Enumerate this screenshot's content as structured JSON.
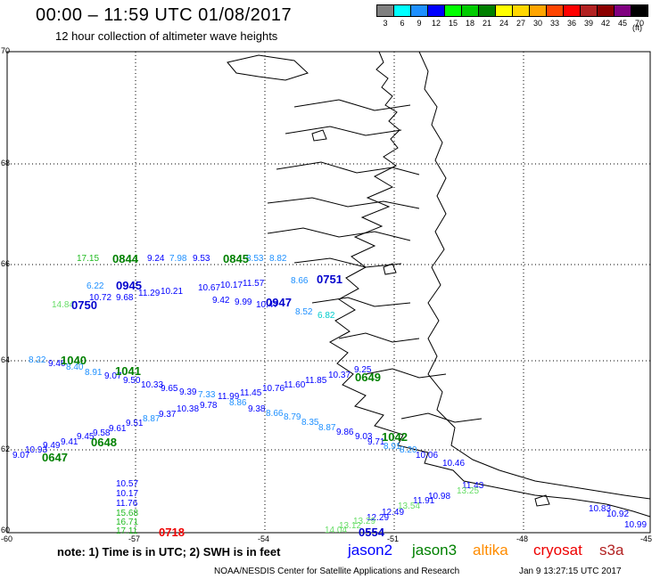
{
  "header": {
    "title": "00:00 – 11:59 UTC 01/08/2017",
    "subtitle": "12 hour collection of altimeter wave heights"
  },
  "color_scale": {
    "unit": "(ft)",
    "bins": [
      {
        "label": "3",
        "color": "#808080"
      },
      {
        "label": "6",
        "color": "#00ffff"
      },
      {
        "label": "9",
        "color": "#1e90ff"
      },
      {
        "label": "12",
        "color": "#0000ff"
      },
      {
        "label": "15",
        "color": "#00ff00"
      },
      {
        "label": "18",
        "color": "#00cc00"
      },
      {
        "label": "21",
        "color": "#008000"
      },
      {
        "label": "24",
        "color": "#ffff00"
      },
      {
        "label": "27",
        "color": "#ffd700"
      },
      {
        "label": "30",
        "color": "#ffa500"
      },
      {
        "label": "33",
        "color": "#ff4500"
      },
      {
        "label": "36",
        "color": "#ff0000"
      },
      {
        "label": "39",
        "color": "#b22222"
      },
      {
        "label": "42",
        "color": "#8b0000"
      },
      {
        "label": "45",
        "color": "#800080"
      },
      {
        "label": "70",
        "color": "#000000"
      }
    ]
  },
  "axes": {
    "lat_ticks": [
      "70",
      "68",
      "66",
      "64",
      "62",
      "60"
    ],
    "lon_ticks": [
      "-60",
      "-57",
      "-54",
      "-51",
      "-48",
      "-45"
    ]
  },
  "map": {
    "wave_heights": [
      {
        "value": "17.15",
        "color": "#22bb22"
      },
      {
        "value": "9.24",
        "color": "#0000ff"
      },
      {
        "value": "7.98",
        "color": "#1e90ff"
      },
      {
        "value": "9.53",
        "color": "#0000ff"
      },
      {
        "value": "8.53",
        "color": "#1e90ff"
      },
      {
        "value": "8.82",
        "color": "#1e90ff"
      },
      {
        "value": "6.22",
        "color": "#1e90ff"
      },
      {
        "value": "10.72",
        "color": "#0000ff"
      },
      {
        "value": "9.68",
        "color": "#0000ff"
      },
      {
        "value": "11.29",
        "color": "#0000ff"
      },
      {
        "value": "10.21",
        "color": "#0000ff"
      },
      {
        "value": "10.67",
        "color": "#0000ff"
      },
      {
        "value": "10.17",
        "color": "#0000ff"
      },
      {
        "value": "11.57",
        "color": "#0000ff"
      },
      {
        "value": "8.66",
        "color": "#1e90ff"
      },
      {
        "value": "14.84",
        "color": "#66dd66"
      },
      {
        "value": "9.42",
        "color": "#0000ff"
      },
      {
        "value": "9.99",
        "color": "#0000ff"
      },
      {
        "value": "10.47",
        "color": "#0000ff"
      },
      {
        "value": "8.52",
        "color": "#1e90ff"
      },
      {
        "value": "6.82",
        "color": "#00cccc"
      },
      {
        "value": "8.22",
        "color": "#1e90ff"
      },
      {
        "value": "9.46",
        "color": "#0000ff"
      },
      {
        "value": "8.40",
        "color": "#1e90ff"
      },
      {
        "value": "8.91",
        "color": "#1e90ff"
      },
      {
        "value": "9.07",
        "color": "#0000ff"
      },
      {
        "value": "9.50",
        "color": "#0000ff"
      },
      {
        "value": "10.33",
        "color": "#0000ff"
      },
      {
        "value": "9.65",
        "color": "#0000ff"
      },
      {
        "value": "9.39",
        "color": "#0000ff"
      },
      {
        "value": "7.33",
        "color": "#1e90ff"
      },
      {
        "value": "11.99",
        "color": "#0000ff"
      },
      {
        "value": "11.45",
        "color": "#0000ff"
      },
      {
        "value": "10.76",
        "color": "#0000ff"
      },
      {
        "value": "11.60",
        "color": "#0000ff"
      },
      {
        "value": "11.85",
        "color": "#0000ff"
      },
      {
        "value": "10.37",
        "color": "#0000ff"
      },
      {
        "value": "9.25",
        "color": "#0000ff"
      },
      {
        "value": "10.38",
        "color": "#0000ff"
      },
      {
        "value": "9.78",
        "color": "#0000ff"
      },
      {
        "value": "8.86",
        "color": "#1e90ff"
      },
      {
        "value": "9.38",
        "color": "#0000ff"
      },
      {
        "value": "8.66",
        "color": "#1e90ff"
      },
      {
        "value": "8.79",
        "color": "#1e90ff"
      },
      {
        "value": "8.35",
        "color": "#1e90ff"
      },
      {
        "value": "8.87",
        "color": "#1e90ff"
      },
      {
        "value": "9.86",
        "color": "#0000ff"
      },
      {
        "value": "9.03",
        "color": "#0000ff"
      },
      {
        "value": "9.71",
        "color": "#0000ff"
      },
      {
        "value": "8.91",
        "color": "#1e90ff"
      },
      {
        "value": "8.20",
        "color": "#1e90ff"
      },
      {
        "value": "9.37",
        "color": "#0000ff"
      },
      {
        "value": "8.87",
        "color": "#1e90ff"
      },
      {
        "value": "9.51",
        "color": "#0000ff"
      },
      {
        "value": "9.61",
        "color": "#0000ff"
      },
      {
        "value": "9.58",
        "color": "#0000ff"
      },
      {
        "value": "9.45",
        "color": "#0000ff"
      },
      {
        "value": "9.41",
        "color": "#0000ff"
      },
      {
        "value": "9.49",
        "color": "#0000ff"
      },
      {
        "value": "10.93",
        "color": "#0000ff"
      },
      {
        "value": "9.07",
        "color": "#0000ff"
      },
      {
        "value": "10.06",
        "color": "#0000ff"
      },
      {
        "value": "10.46",
        "color": "#0000ff"
      },
      {
        "value": "11.43",
        "color": "#0000ff"
      },
      {
        "value": "13.25",
        "color": "#66dd66"
      },
      {
        "value": "10.98",
        "color": "#0000ff"
      },
      {
        "value": "11.91",
        "color": "#0000ff"
      },
      {
        "value": "13.54",
        "color": "#66dd66"
      },
      {
        "value": "12.49",
        "color": "#0000ff"
      },
      {
        "value": "12.29",
        "color": "#0000ff"
      },
      {
        "value": "13.29",
        "color": "#66dd66"
      },
      {
        "value": "13.12",
        "color": "#66dd66"
      },
      {
        "value": "14.04",
        "color": "#66dd66"
      },
      {
        "value": "10.57",
        "color": "#0000ff"
      },
      {
        "value": "10.17",
        "color": "#0000ff"
      },
      {
        "value": "11.76",
        "color": "#0000ff"
      },
      {
        "value": "15.68",
        "color": "#22bb22"
      },
      {
        "value": "16.71",
        "color": "#22bb22"
      },
      {
        "value": "17.11",
        "color": "#22bb22"
      },
      {
        "value": "10.83",
        "color": "#0000ff"
      },
      {
        "value": "10.92",
        "color": "#0000ff"
      },
      {
        "value": "10.99",
        "color": "#0000ff"
      }
    ],
    "pass_times": [
      {
        "time": "0844",
        "color": "#008000"
      },
      {
        "time": "0845",
        "color": "#008000"
      },
      {
        "time": "0945",
        "color": "#0000cc"
      },
      {
        "time": "0750",
        "color": "#0000cc"
      },
      {
        "time": "0947",
        "color": "#0000cc"
      },
      {
        "time": "0751",
        "color": "#0000cc"
      },
      {
        "time": "1040",
        "color": "#008000"
      },
      {
        "time": "1041",
        "color": "#008000"
      },
      {
        "time": "0649",
        "color": "#008000"
      },
      {
        "time": "1042",
        "color": "#008000"
      },
      {
        "time": "0648",
        "color": "#008000"
      },
      {
        "time": "0647",
        "color": "#008000"
      },
      {
        "time": "0718",
        "color": "#ee0000"
      },
      {
        "time": "0554",
        "color": "#0000cc"
      }
    ]
  },
  "footer": {
    "note": "note:  1) Time is in UTC;  2) SWH is in feet",
    "satellites": [
      {
        "name": "jason2",
        "color": "#0000ff"
      },
      {
        "name": "jason3",
        "color": "#008000"
      },
      {
        "name": "altika",
        "color": "#ff8c00"
      },
      {
        "name": "cryosat",
        "color": "#ee0000"
      },
      {
        "name": "s3a",
        "color": "#b22222"
      }
    ],
    "credit": "NOAA/NESDIS Center for Satellite Applications and Research",
    "timestamp": "Jan  9 13:27:15 UTC 2017"
  }
}
